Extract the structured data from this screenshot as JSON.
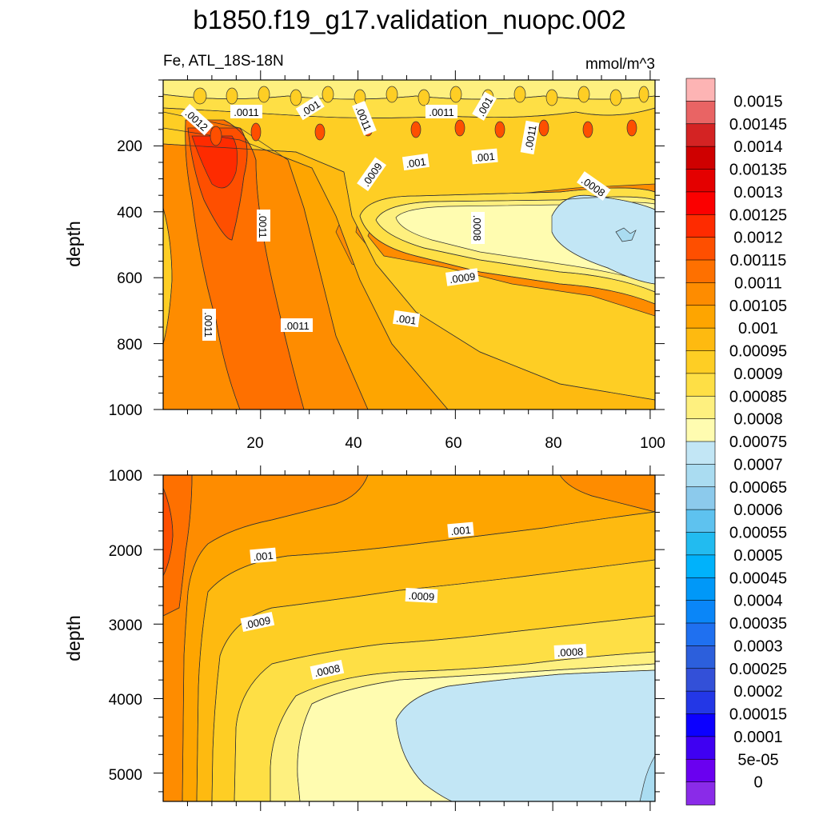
{
  "title": "b1850.f19_g17.validation_nuopc.002",
  "subtitle_left": "Fe, ATL_18S-18N",
  "subtitle_right": "mmol/m^3",
  "colorbar": {
    "levels": [
      "0.0015",
      "0.00145",
      "0.0014",
      "0.00135",
      "0.0013",
      "0.00125",
      "0.0012",
      "0.00115",
      "0.0011",
      "0.00105",
      "0.001",
      "0.00095",
      "0.0009",
      "0.00085",
      "0.0008",
      "0.00075",
      "0.0007",
      "0.00065",
      "0.0006",
      "0.00055",
      "0.0005",
      "0.00045",
      "0.0004",
      "0.00035",
      "0.0003",
      "0.00025",
      "0.0002",
      "0.00015",
      "0.0001",
      "5e-05",
      "0"
    ],
    "colors": [
      "#fdb4b4",
      "#e96464",
      "#d42323",
      "#cf0000",
      "#e40000",
      "#fb0000",
      "#fe2b00",
      "#fe4f00",
      "#fe7000",
      "#fe8c00",
      "#fea500",
      "#feba10",
      "#fece24",
      "#fedf45",
      "#fef07f",
      "#fffcb0",
      "#c2e6f5",
      "#aadcf1",
      "#8ccaec",
      "#5ec2ef",
      "#22bbf0",
      "#00b2fb",
      "#0098f8",
      "#0a86f8",
      "#1f70f0",
      "#2c5fdc",
      "#3350d8",
      "#2337e6",
      "#0c00ff",
      "#3f00f2",
      "#6a00f0",
      "#8a2be8"
    ]
  },
  "chart_data": [
    {
      "type": "heatmap",
      "name": "upper",
      "x": [
        0,
        20,
        40,
        60,
        80,
        100
      ],
      "xlim": [
        0,
        101
      ],
      "ylim": [
        1000,
        0
      ],
      "ylabel": "depth",
      "xticklabels": [
        "20",
        "40",
        "60",
        "80",
        "100"
      ],
      "yticklabels": [
        "200",
        "400",
        "600",
        "800",
        "1000"
      ],
      "contour_labels": [
        ".0012",
        ".0011",
        ".001",
        ".0011",
        ".0011",
        ".001",
        ".0011",
        ".0009",
        ".001",
        ".001",
        ".0008",
        ".0008",
        ".0011",
        ".0009",
        ".0011",
        ".0011",
        ".001"
      ]
    },
    {
      "type": "heatmap",
      "name": "lower",
      "xlim": [
        0,
        101
      ],
      "ylim": [
        5400,
        1000
      ],
      "ylabel": "depth",
      "yticklabels": [
        "1000",
        "2000",
        "3000",
        "4000",
        "5000"
      ],
      "contour_labels": [
        ".001",
        ".001",
        ".0009",
        ".0009",
        ".0008",
        ".0008"
      ]
    }
  ]
}
